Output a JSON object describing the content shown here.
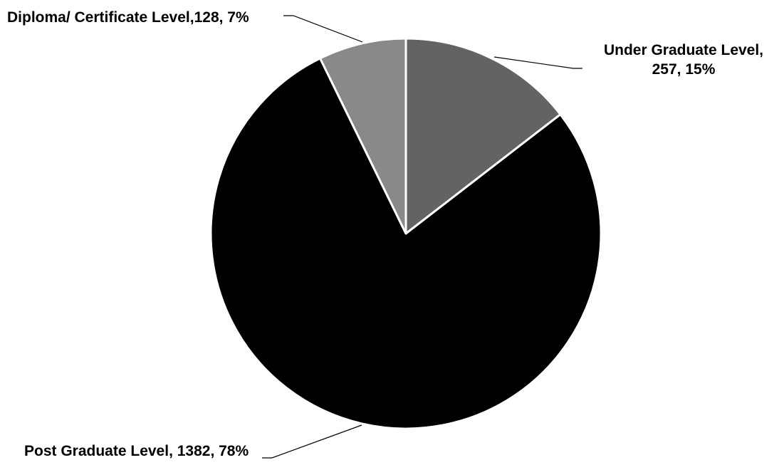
{
  "chart_data": {
    "type": "pie",
    "title": "",
    "slices": [
      {
        "label": "Under Graduate Level",
        "value": 257,
        "percent": "15%",
        "color": "#636363",
        "data_label_lines": [
          "Under Graduate Level,",
          "257, 15%"
        ]
      },
      {
        "label": "Post Graduate Level",
        "value": 1382,
        "percent": "78%",
        "color": "#000000",
        "data_label_lines": [
          "Post Graduate Level, 1382, 78%"
        ]
      },
      {
        "label": "Diploma/ Certificate Level",
        "value": 128,
        "percent": "7%",
        "color": "#898989",
        "data_label_lines": [
          "Diploma/ Certificate Level,128, 7%"
        ]
      }
    ],
    "slice_border_color": "#ffffff",
    "start_angle": "12 o'clock",
    "direction": "clockwise",
    "legend": "none"
  }
}
